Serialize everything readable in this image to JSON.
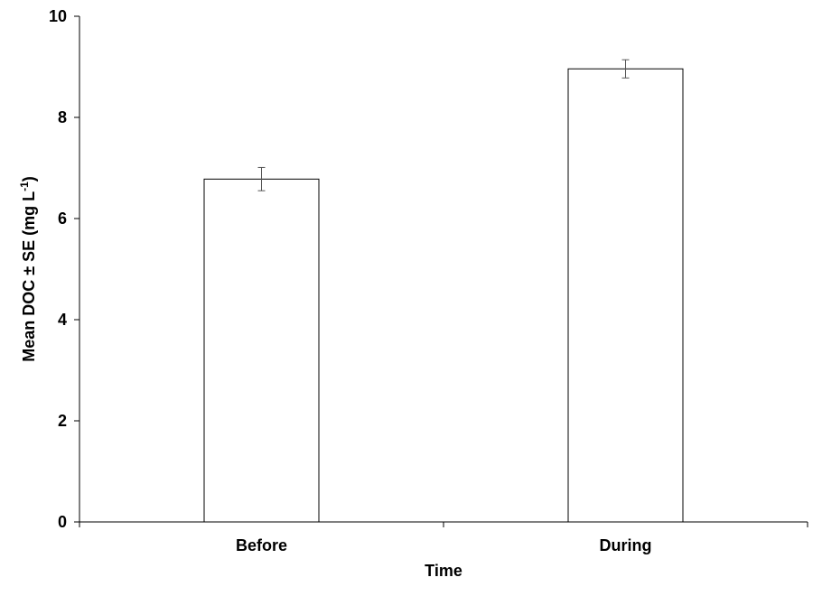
{
  "chart_data": {
    "type": "bar",
    "categories": [
      "Before",
      "During"
    ],
    "values": [
      6.78,
      8.96
    ],
    "errors": [
      0.23,
      0.18
    ],
    "xlabel": "Time",
    "ylabel": {
      "main": "Mean DOC ± SE (mg L",
      "superscript": "-1",
      "close": ")"
    },
    "ylim": [
      0,
      10
    ],
    "yticks": [
      0,
      2,
      4,
      6,
      8,
      10
    ],
    "ytick_labels": [
      "0",
      "2",
      "4",
      "6",
      "8",
      "10"
    ],
    "grid": false,
    "legend": "none",
    "colors": {
      "bar_fill": "#ffffff",
      "bar_stroke": "#000000",
      "axis": "#000000",
      "error_bar": "#555555"
    }
  }
}
